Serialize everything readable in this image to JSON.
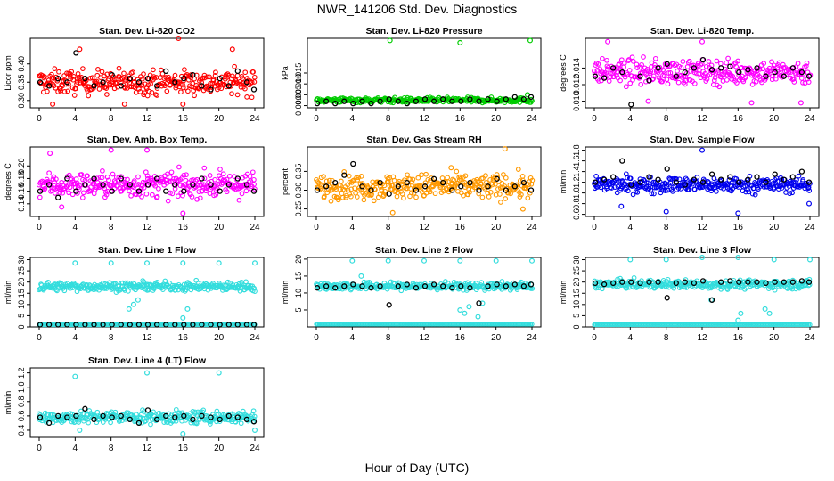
{
  "figure": {
    "title": "NWR_141206  Std. Dev. Diagnostics",
    "xlabel": "Hour of Day (UTC)"
  },
  "chart_data": [
    {
      "type": "scatter",
      "title": "Stan. Dev. Li-820 CO2",
      "ylabel": "Licor ppm",
      "xlim": [
        0,
        24
      ],
      "ylim": [
        0.28,
        0.47
      ],
      "xticks": [
        0,
        4,
        8,
        12,
        16,
        20,
        24
      ],
      "yticks": [
        0.3,
        0.35,
        0.4
      ],
      "ytick_labels": [
        "0.30",
        "0.35",
        "0.40"
      ],
      "series": [
        {
          "name": "all",
          "color": "#ff0000",
          "band": [
            0.3,
            0.4
          ],
          "center": 0.35,
          "outliers": [
            [
              4.5,
              0.44
            ],
            [
              15.5,
              0.47
            ],
            [
              21.5,
              0.44
            ],
            [
              1.5,
              0.29
            ],
            [
              16,
              0.29
            ],
            [
              9.5,
              0.29
            ]
          ]
        },
        {
          "name": "hourly",
          "color": "#000000",
          "values": [
            0.35,
            0.34,
            0.36,
            0.35,
            0.43,
            0.36,
            0.34,
            0.35,
            0.37,
            0.34,
            0.36,
            0.35,
            0.36,
            0.34,
            0.38,
            0.35,
            0.36,
            0.37,
            0.34,
            0.33,
            0.36,
            0.34,
            0.38,
            0.35,
            0.33
          ]
        }
      ]
    },
    {
      "type": "scatter",
      "title": "Stan. Dev. Li-820 Pressure",
      "ylabel": "kPa",
      "xlim": [
        0,
        24
      ],
      "ylim": [
        -0.001,
        0.031
      ],
      "xticks": [
        0,
        4,
        8,
        12,
        16,
        20,
        24
      ],
      "yticks": [
        0.0,
        0.005,
        0.01,
        0.015
      ],
      "ytick_labels": [
        "0.000",
        "0.005",
        "0.010",
        "0.015"
      ],
      "series": [
        {
          "name": "all",
          "color": "#00cc00",
          "band": [
            0.001,
            0.0045
          ],
          "center": 0.0025,
          "outliers": [
            [
              8.2,
              0.03
            ],
            [
              16,
              0.029
            ],
            [
              23.8,
              0.03
            ],
            [
              23.5,
              0.005
            ]
          ]
        },
        {
          "name": "hourly",
          "color": "#000000",
          "values": [
            0.001,
            0.002,
            0.001,
            0.002,
            0.001,
            0.002,
            0.001,
            0.002,
            0.003,
            0.002,
            0.001,
            0.002,
            0.003,
            0.002,
            0.003,
            0.002,
            0.002,
            0.003,
            0.002,
            0.003,
            0.002,
            0.003,
            0.004,
            0.003,
            0.004
          ]
        }
      ]
    },
    {
      "type": "scatter",
      "title": "Stan. Dev. Li-820 Temp.",
      "ylabel": "degrees C",
      "xlim": [
        0,
        24
      ],
      "ylim": [
        0.0092,
        0.0176
      ],
      "xticks": [
        0,
        4,
        8,
        12,
        16,
        20,
        24
      ],
      "yticks": [
        0.01,
        0.012,
        0.014
      ],
      "ytick_labels": [
        "0.010",
        "0.012",
        "0.014"
      ],
      "series": [
        {
          "name": "all",
          "color": "#ff00ff",
          "band": [
            0.0112,
            0.0158
          ],
          "center": 0.0135,
          "outliers": [
            [
              1.5,
              0.0172
            ],
            [
              12,
              0.0172
            ],
            [
              6,
              0.01
            ],
            [
              17.5,
              0.0098
            ],
            [
              23,
              0.0098
            ]
          ]
        },
        {
          "name": "hourly",
          "color": "#000000",
          "values": [
            0.013,
            0.0128,
            0.014,
            0.0135,
            0.0096,
            0.013,
            0.0125,
            0.014,
            0.0145,
            0.013,
            0.0135,
            0.014,
            0.015,
            0.0138,
            0.014,
            0.0142,
            0.0135,
            0.0138,
            0.014,
            0.013,
            0.0135,
            0.013,
            0.014,
            0.0135,
            0.013
          ]
        }
      ]
    },
    {
      "type": "scatter",
      "title": "Stan. Dev. Amb. Box Temp.",
      "ylabel": "degrees C",
      "xlim": [
        0,
        24
      ],
      "ylim": [
        0.12,
        0.23
      ],
      "xticks": [
        0,
        4,
        8,
        12,
        16,
        20,
        24
      ],
      "yticks": [
        0.14,
        0.16,
        0.18,
        0.2
      ],
      "ytick_labels": [
        "0.14",
        "0.16",
        "0.18",
        "0.20"
      ],
      "series": [
        {
          "name": "all",
          "color": "#ff00ff",
          "band": [
            0.145,
            0.205
          ],
          "center": 0.17,
          "outliers": [
            [
              1.2,
              0.22
            ],
            [
              8,
              0.225
            ],
            [
              12,
              0.225
            ],
            [
              16,
              0.125
            ],
            [
              2.5,
              0.135
            ]
          ]
        },
        {
          "name": "hourly",
          "color": "#000000",
          "values": [
            0.16,
            0.17,
            0.15,
            0.18,
            0.16,
            0.17,
            0.18,
            0.17,
            0.16,
            0.18,
            0.17,
            0.16,
            0.17,
            0.18,
            0.16,
            0.17,
            0.16,
            0.17,
            0.18,
            0.17,
            0.16,
            0.17,
            0.18,
            0.17,
            0.16
          ]
        }
      ]
    },
    {
      "type": "scatter",
      "title": "Stan. Dev. Gas Stream RH",
      "ylabel": "percent",
      "xlim": [
        0,
        24
      ],
      "ylim": [
        0.23,
        0.415
      ],
      "xticks": [
        0,
        4,
        8,
        12,
        16,
        20,
        24
      ],
      "yticks": [
        0.25,
        0.3,
        0.35
      ],
      "ytick_labels": [
        "0.25",
        "0.30",
        "0.35"
      ],
      "series": [
        {
          "name": "all",
          "color": "#ff9900",
          "band": [
            0.26,
            0.36
          ],
          "center": 0.31,
          "outliers": [
            [
              21,
              0.41
            ],
            [
              8.5,
              0.24
            ],
            [
              23,
              0.25
            ],
            [
              15,
              0.36
            ]
          ]
        },
        {
          "name": "hourly",
          "color": "#000000",
          "values": [
            0.3,
            0.31,
            0.32,
            0.34,
            0.37,
            0.31,
            0.3,
            0.32,
            0.29,
            0.31,
            0.32,
            0.3,
            0.31,
            0.33,
            0.32,
            0.3,
            0.31,
            0.32,
            0.3,
            0.31,
            0.33,
            0.3,
            0.31,
            0.32,
            0.3
          ]
        }
      ]
    },
    {
      "type": "scatter",
      "title": "Stan. Dev. Sample Flow",
      "ylabel": "ml/min",
      "xlim": [
        0,
        24
      ],
      "ylim": [
        0.56,
        1.86
      ],
      "xticks": [
        0,
        4,
        8,
        12,
        16,
        20,
        24
      ],
      "yticks": [
        0.6,
        0.8,
        1.0,
        1.2,
        1.4,
        1.6,
        1.8
      ],
      "ytick_labels": [
        "0.6",
        "0.8",
        "1.0",
        "1.2",
        "1.4",
        "1.6",
        "1.8"
      ],
      "series": [
        {
          "name": "all",
          "color": "#0000ee",
          "band": [
            0.95,
            1.4
          ],
          "center": 1.15,
          "outliers": [
            [
              8,
              0.65
            ],
            [
              16,
              0.62
            ],
            [
              12,
              1.8
            ],
            [
              3,
              0.75
            ],
            [
              23.9,
              0.8
            ]
          ]
        },
        {
          "name": "hourly",
          "color": "#000000",
          "values": [
            1.2,
            1.25,
            1.3,
            1.6,
            1.15,
            1.2,
            1.3,
            1.25,
            1.45,
            1.2,
            1.15,
            1.25,
            1.2,
            1.35,
            1.25,
            1.3,
            1.2,
            1.25,
            1.3,
            1.2,
            1.35,
            1.25,
            1.3,
            1.4,
            1.2
          ]
        }
      ]
    },
    {
      "type": "scatter",
      "title": "Stan. Dev. Line 1 Flow",
      "ylabel": "ml/min",
      "xlim": [
        0,
        24
      ],
      "ylim": [
        0,
        31
      ],
      "xticks": [
        0,
        4,
        8,
        12,
        16,
        20,
        24
      ],
      "yticks": [
        0,
        5,
        10,
        15,
        20,
        25,
        30
      ],
      "ytick_labels": [
        "0",
        "5",
        "10",
        "15",
        "20",
        "25",
        "30"
      ],
      "series": [
        {
          "name": "all",
          "color": "#33dddd",
          "band": [
            15.5,
            21.5
          ],
          "center": 18,
          "outliers": [
            [
              4,
              28.5
            ],
            [
              8,
              28.5
            ],
            [
              12,
              28.5
            ],
            [
              16,
              28.5
            ],
            [
              20,
              28.5
            ],
            [
              24,
              28.5
            ],
            [
              10,
              8
            ],
            [
              10.5,
              10
            ],
            [
              11,
              12
            ],
            [
              16,
              4
            ],
            [
              16.5,
              8
            ]
          ],
          "floor": 1.0
        },
        {
          "name": "hourly",
          "color": "#000000",
          "values": [
            1.0,
            1.0,
            1.0,
            1.0,
            1.0,
            1.0,
            1.0,
            1.0,
            1.0,
            1.0,
            1.0,
            1.0,
            1.0,
            1.0,
            1.0,
            1.0,
            1.0,
            1.0,
            1.0,
            1.0,
            1.0,
            1.0,
            1.0,
            1.0,
            1.0
          ]
        }
      ]
    },
    {
      "type": "scatter",
      "title": "Stan. Dev. Line 2 Flow",
      "ylabel": "ml/min",
      "xlim": [
        0,
        24
      ],
      "ylim": [
        0,
        20.5
      ],
      "xticks": [
        0,
        4,
        8,
        12,
        16,
        20,
        24
      ],
      "yticks": [
        5,
        10,
        15,
        20
      ],
      "ytick_labels": [
        "5",
        "10",
        "15",
        "20"
      ],
      "series": [
        {
          "name": "all",
          "color": "#33dddd",
          "band": [
            10.5,
            14
          ],
          "center": 12,
          "outliers": [
            [
              4,
              19.5
            ],
            [
              8,
              19.5
            ],
            [
              12,
              19.5
            ],
            [
              16,
              19.5
            ],
            [
              20,
              19.5
            ],
            [
              24,
              19.5
            ],
            [
              16,
              5
            ],
            [
              16.5,
              4
            ],
            [
              17,
              6
            ],
            [
              18,
              3
            ],
            [
              18.5,
              7
            ],
            [
              5,
              15
            ]
          ],
          "floor": 0.8
        },
        {
          "name": "hourly",
          "color": "#000000",
          "values": [
            11.5,
            12.0,
            11.5,
            12.0,
            12.5,
            12.0,
            11.5,
            12.0,
            6.5,
            12.0,
            12.5,
            11.5,
            12.0,
            12.5,
            12.0,
            11.5,
            12.0,
            11.5,
            7.0,
            12.0,
            12.5,
            12.0,
            12.5,
            12.0,
            12.5
          ]
        }
      ]
    },
    {
      "type": "scatter",
      "title": "Stan. Dev. Line 3 Flow",
      "ylabel": "ml/min",
      "xlim": [
        0,
        24
      ],
      "ylim": [
        0,
        31
      ],
      "xticks": [
        0,
        4,
        8,
        12,
        16,
        20,
        24
      ],
      "yticks": [
        0,
        5,
        10,
        15,
        20,
        25,
        30
      ],
      "ytick_labels": [
        "0",
        "5",
        "10",
        "15",
        "20",
        "25",
        "30"
      ],
      "series": [
        {
          "name": "all",
          "color": "#33dddd",
          "band": [
            16,
            22
          ],
          "center": 19,
          "outliers": [
            [
              4,
              30
            ],
            [
              8,
              30
            ],
            [
              12,
              31
            ],
            [
              16,
              31
            ],
            [
              20,
              30
            ],
            [
              24,
              30
            ],
            [
              16,
              3
            ],
            [
              16.3,
              6
            ],
            [
              19,
              8
            ],
            [
              19.5,
              6
            ],
            [
              13,
              12
            ]
          ],
          "floor": 1.0
        },
        {
          "name": "hourly",
          "color": "#000000",
          "values": [
            19.5,
            19.0,
            19.5,
            20.0,
            20.0,
            19.5,
            20.0,
            20.0,
            13.0,
            19.5,
            20.0,
            19.5,
            20.5,
            12.0,
            20.0,
            20.5,
            20.0,
            20.0,
            20.0,
            19.5,
            20.0,
            20.0,
            20.0,
            20.5,
            20.0
          ]
        }
      ]
    },
    {
      "type": "scatter",
      "title": "Stan. Dev. Line 4 (LT) Flow",
      "ylabel": "ml/min",
      "xlim": [
        0,
        24
      ],
      "ylim": [
        0.3,
        1.27
      ],
      "xticks": [
        0,
        4,
        8,
        12,
        16,
        20,
        24
      ],
      "yticks": [
        0.4,
        0.6,
        0.8,
        1.0,
        1.2
      ],
      "ytick_labels": [
        "0.4",
        "0.6",
        "0.8",
        "1.0",
        "1.2"
      ],
      "series": [
        {
          "name": "all",
          "color": "#33dddd",
          "band": [
            0.45,
            0.72
          ],
          "center": 0.58,
          "outliers": [
            [
              4,
              1.15
            ],
            [
              12,
              1.2
            ],
            [
              20,
              1.2
            ],
            [
              16,
              0.35
            ],
            [
              24,
              0.4
            ],
            [
              4.5,
              0.4
            ]
          ]
        },
        {
          "name": "hourly",
          "color": "#000000",
          "values": [
            0.58,
            0.5,
            0.6,
            0.58,
            0.6,
            0.7,
            0.55,
            0.6,
            0.58,
            0.6,
            0.55,
            0.5,
            0.68,
            0.55,
            0.6,
            0.58,
            0.6,
            0.55,
            0.6,
            0.58,
            0.55,
            0.6,
            0.58,
            0.55,
            0.52
          ]
        }
      ]
    }
  ]
}
